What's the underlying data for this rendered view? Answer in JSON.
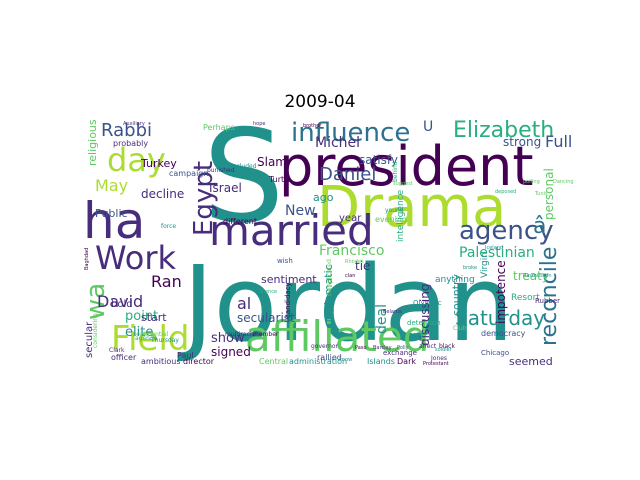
{
  "title": "2009-04",
  "colors": {
    "purple": "#440154",
    "indigo": "#472d7b",
    "blue": "#3b528b",
    "steel": "#2c728e",
    "teal": "#21918c",
    "green": "#28ae80",
    "lime": "#5ec962",
    "yellow": "#addc30"
  },
  "words": [
    {
      "text": "Jordan",
      "color": "teal"
    },
    {
      "text": "S",
      "color": "teal"
    },
    {
      "text": "president",
      "color": "purple"
    },
    {
      "text": "Drama",
      "color": "yellow"
    },
    {
      "text": "affiliated",
      "color": "lime"
    },
    {
      "text": "married",
      "color": "indigo"
    },
    {
      "text": "ha",
      "color": "indigo"
    },
    {
      "text": "Work",
      "color": "indigo"
    },
    {
      "text": "Field",
      "color": "yellow"
    },
    {
      "text": "influence",
      "color": "steel"
    },
    {
      "text": "Elizabeth",
      "color": "green"
    },
    {
      "text": "day",
      "color": "yellow"
    },
    {
      "text": "Egypt",
      "color": "indigo"
    },
    {
      "text": "agency",
      "color": "blue"
    },
    {
      "text": "reconcile",
      "color": "steel"
    },
    {
      "text": "wa",
      "color": "lime"
    },
    {
      "text": "Rabbi",
      "color": "blue"
    },
    {
      "text": "Daniel",
      "color": "blue"
    },
    {
      "text": "Saturday",
      "color": "teal"
    },
    {
      "text": "Michel",
      "color": "indigo"
    },
    {
      "text": "David",
      "color": "indigo"
    },
    {
      "text": "Ran",
      "color": "purple"
    },
    {
      "text": "May",
      "color": "yellow"
    },
    {
      "text": "Francisco",
      "color": "lime"
    },
    {
      "text": "Palestinian",
      "color": "green"
    },
    {
      "text": "deal",
      "color": "teal"
    },
    {
      "text": "Full",
      "color": "blue"
    },
    {
      "text": "strong",
      "color": "blue"
    },
    {
      "text": "personal",
      "color": "lime"
    },
    {
      "text": "â",
      "color": "steel"
    },
    {
      "text": "U",
      "color": "blue"
    },
    {
      "text": "treaty",
      "color": "lime"
    },
    {
      "text": "impotence",
      "color": "purple"
    },
    {
      "text": "country",
      "color": "teal"
    },
    {
      "text": "discussing",
      "color": "indigo"
    },
    {
      "text": "diplomatic",
      "color": "teal"
    },
    {
      "text": "New",
      "color": "blue"
    },
    {
      "text": "al",
      "color": "indigo"
    },
    {
      "text": "show",
      "color": "indigo"
    },
    {
      "text": "signed",
      "color": "purple"
    },
    {
      "text": "point",
      "color": "green"
    },
    {
      "text": "elite",
      "color": "teal"
    },
    {
      "text": "secularist",
      "color": "blue"
    },
    {
      "text": "sentiment",
      "color": "indigo"
    },
    {
      "text": "Israel",
      "color": "indigo"
    },
    {
      "text": "Slam",
      "color": "purple"
    },
    {
      "text": "decline",
      "color": "indigo"
    },
    {
      "text": "Public",
      "color": "blue"
    },
    {
      "text": "Turkey",
      "color": "purple"
    },
    {
      "text": "religious",
      "color": "lime"
    },
    {
      "text": "secular",
      "color": "indigo"
    },
    {
      "text": "start",
      "color": "indigo"
    },
    {
      "text": "bold",
      "color": "indigo"
    },
    {
      "text": "ago",
      "color": "teal"
    },
    {
      "text": "tie",
      "color": "indigo"
    },
    {
      "text": "year",
      "color": "indigo"
    },
    {
      "text": "satisfy",
      "color": "blue"
    },
    {
      "text": "seemed",
      "color": "indigo"
    },
    {
      "text": "democracy",
      "color": "blue"
    },
    {
      "text": "anything",
      "color": "teal"
    },
    {
      "text": "Resort",
      "color": "green"
    },
    {
      "text": "Chicago",
      "color": "blue"
    },
    {
      "text": "Rubber",
      "color": "indigo"
    },
    {
      "text": "Virgin",
      "color": "teal"
    },
    {
      "text": "ambitious",
      "color": "indigo"
    },
    {
      "text": "officer",
      "color": "indigo"
    },
    {
      "text": "Paul",
      "color": "indigo"
    },
    {
      "text": "director",
      "color": "purple"
    },
    {
      "text": "Central",
      "color": "lime"
    },
    {
      "text": "administration",
      "color": "teal"
    },
    {
      "text": "rallied",
      "color": "blue"
    },
    {
      "text": "Islands",
      "color": "teal"
    },
    {
      "text": "Dark",
      "color": "purple"
    },
    {
      "text": "probably",
      "color": "indigo"
    },
    {
      "text": "campaign",
      "color": "blue"
    },
    {
      "text": "different",
      "color": "purple"
    },
    {
      "text": "Turtle",
      "color": "purple"
    },
    {
      "text": "evening",
      "color": "lime"
    },
    {
      "text": "intelligence",
      "color": "green"
    },
    {
      "text": "candidacy",
      "color": "purple"
    },
    {
      "text": "Olympic",
      "color": "teal"
    },
    {
      "text": "detention",
      "color": "green"
    },
    {
      "text": "exchange",
      "color": "indigo"
    },
    {
      "text": "affect",
      "color": "indigo"
    },
    {
      "text": "black",
      "color": "purple"
    },
    {
      "text": "Club",
      "color": "lime"
    },
    {
      "text": "Perhaps",
      "color": "lime"
    },
    {
      "text": "presidential",
      "color": "lime"
    },
    {
      "text": "agenda",
      "color": "green"
    },
    {
      "text": "Thursday",
      "color": "teal"
    },
    {
      "text": "Clark",
      "color": "indigo"
    },
    {
      "text": "punished",
      "color": "indigo"
    },
    {
      "text": "included",
      "color": "teal"
    },
    {
      "text": "behind",
      "color": "green"
    },
    {
      "text": "considering",
      "color": "lime"
    },
    {
      "text": "complicated",
      "color": "lime"
    },
    {
      "text": "multiracial",
      "color": "indigo"
    },
    {
      "text": "member",
      "color": "purple"
    },
    {
      "text": "governor",
      "color": "indigo"
    },
    {
      "text": "Silence",
      "color": "green"
    },
    {
      "text": "said",
      "color": "teal"
    },
    {
      "text": "force",
      "color": "teal"
    },
    {
      "text": "wish",
      "color": "blue"
    },
    {
      "text": "young",
      "color": "teal"
    },
    {
      "text": "suggest",
      "color": "lime"
    },
    {
      "text": "Paso",
      "color": "purple"
    },
    {
      "text": "Barclay",
      "color": "indigo"
    },
    {
      "text": "Jones",
      "color": "indigo"
    },
    {
      "text": "know",
      "color": "teal"
    },
    {
      "text": "Protestant",
      "color": "purple"
    },
    {
      "text": "Rhodes",
      "color": "lime"
    },
    {
      "text": "clan",
      "color": "purple"
    },
    {
      "text": "polling",
      "color": "lime"
    },
    {
      "text": "Dancing",
      "color": "lime"
    },
    {
      "text": "deposed",
      "color": "green"
    },
    {
      "text": "Auxiliary",
      "color": "indigo"
    },
    {
      "text": "brother",
      "color": "purple"
    },
    {
      "text": "hope",
      "color": "indigo"
    },
    {
      "text": "Belarus",
      "color": "indigo"
    },
    {
      "text": "Iceland",
      "color": "teal"
    },
    {
      "text": "Tunis",
      "color": "lime"
    },
    {
      "text": "Polly",
      "color": "blue"
    },
    {
      "text": "soldier",
      "color": "teal"
    },
    {
      "text": "Rasmussen",
      "color": "teal"
    },
    {
      "text": "Baghdad",
      "color": "purple"
    },
    {
      "text": "broke",
      "color": "teal"
    }
  ]
}
